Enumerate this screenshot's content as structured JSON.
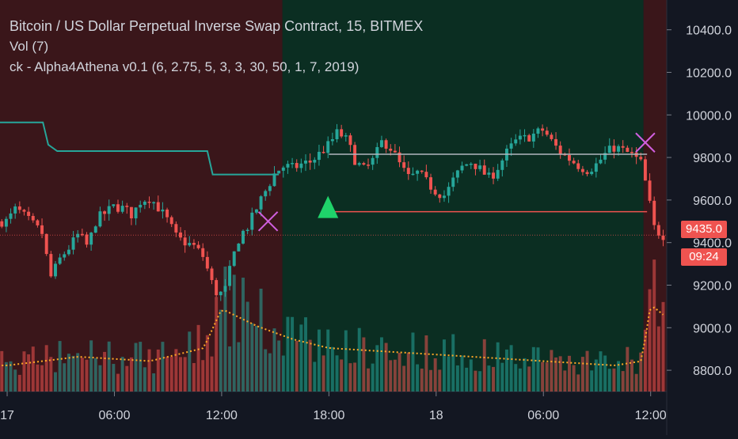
{
  "chart_data": {
    "type": "candlestick",
    "title": "Bitcoin / US Dollar Perpetual Inverse Swap Contract, 15, BITMEX",
    "indicators": [
      "Vol (7)",
      "ck - Alpha4Athena v0.1 (6, 2.75, 5, 3, 3, 30, 50, 1, 7, 2019)"
    ],
    "ylim": [
      8700,
      10540
    ],
    "yticks": [
      "10400.0",
      "10200.0",
      "10000.0",
      "9800.0",
      "9600.0",
      "9400.0",
      "9200.0",
      "9000.0",
      "8800.0"
    ],
    "yticks_values": [
      10400,
      10200,
      10000,
      9800,
      9600,
      9400,
      9200,
      9000,
      8800
    ],
    "xticks": [
      "17",
      "06:00",
      "12:00",
      "18:00",
      "18",
      "06:00",
      "12:00"
    ],
    "xticks_hours": [
      0,
      6,
      12,
      18,
      24,
      30,
      36
    ],
    "xlim_hours": [
      -0.4,
      36.9
    ],
    "current_price": "9435.0",
    "countdown": "09:24",
    "colors": {
      "background": "#131722",
      "bear_zone": "#3a161a",
      "bull_zone": "#0b2e22",
      "up": "#26a69a",
      "down": "#ef5350",
      "stop_line": "#26a69a",
      "vol_ma": "#ffa726",
      "entry_line": "#ef5350",
      "resistance_line": "#b2b5be",
      "signal_cross": "#d15fe0",
      "signal_triangle": "#1fd36a",
      "text": "#d1d4dc"
    },
    "zones": [
      {
        "type": "bear",
        "from_hour": -0.4,
        "to_hour": 15.4
      },
      {
        "type": "bull",
        "from_hour": 15.4,
        "to_hour": 35.6
      },
      {
        "type": "bear",
        "from_hour": 35.6,
        "to_hour": 36.9
      }
    ],
    "stop_line": [
      [
        -0.4,
        9965
      ],
      [
        2.0,
        9965
      ],
      [
        2.3,
        9860
      ],
      [
        2.8,
        9830
      ],
      [
        11.2,
        9830
      ],
      [
        11.5,
        9720
      ],
      [
        15.2,
        9720
      ]
    ],
    "resistance_line": {
      "from_hour": 18.0,
      "to_hour": 35.8,
      "price": 9815
    },
    "entry_line": {
      "from_hour": 18.0,
      "to_hour": 35.8,
      "price": 9545
    },
    "signals": [
      {
        "type": "cross",
        "hour": 14.6,
        "price": 9500
      },
      {
        "type": "triangle-up",
        "hour": 17.95,
        "price": 9560
      },
      {
        "type": "cross",
        "hour": 35.7,
        "price": 9870
      }
    ],
    "price_path": [
      [
        0,
        9500
      ],
      [
        0.5,
        9560
      ],
      [
        1,
        9520
      ],
      [
        1.5,
        9480
      ],
      [
        2,
        9440
      ],
      [
        2.4,
        9230
      ],
      [
        3,
        9330
      ],
      [
        3.5,
        9380
      ],
      [
        4,
        9440
      ],
      [
        4.5,
        9380
      ],
      [
        5,
        9510
      ],
      [
        5.5,
        9540
      ],
      [
        6,
        9570
      ],
      [
        6.5,
        9560
      ],
      [
        7,
        9530
      ],
      [
        7.5,
        9600
      ],
      [
        8,
        9610
      ],
      [
        8.5,
        9560
      ],
      [
        9,
        9500
      ],
      [
        9.5,
        9420
      ],
      [
        10,
        9400
      ],
      [
        10.5,
        9380
      ],
      [
        11,
        9330
      ],
      [
        11.4,
        9220
      ],
      [
        11.8,
        9150
      ],
      [
        12.2,
        9180
      ],
      [
        12.6,
        9320
      ],
      [
        13,
        9430
      ],
      [
        13.5,
        9480
      ],
      [
        14,
        9570
      ],
      [
        14.5,
        9650
      ],
      [
        15,
        9730
      ],
      [
        15.5,
        9760
      ],
      [
        16,
        9750
      ],
      [
        16.5,
        9770
      ],
      [
        17,
        9780
      ],
      [
        17.5,
        9820
      ],
      [
        18,
        9860
      ],
      [
        18.5,
        9920
      ],
      [
        19,
        9880
      ],
      [
        19.5,
        9780
      ],
      [
        20,
        9740
      ],
      [
        20.5,
        9790
      ],
      [
        21,
        9880
      ],
      [
        21.5,
        9840
      ],
      [
        22,
        9760
      ],
      [
        22.5,
        9700
      ],
      [
        23,
        9730
      ],
      [
        23.5,
        9680
      ],
      [
        24,
        9640
      ],
      [
        24.5,
        9620
      ],
      [
        25,
        9700
      ],
      [
        25.5,
        9760
      ],
      [
        26,
        9780
      ],
      [
        26.5,
        9740
      ],
      [
        27,
        9700
      ],
      [
        27.5,
        9760
      ],
      [
        28,
        9830
      ],
      [
        28.5,
        9880
      ],
      [
        29,
        9890
      ],
      [
        29.5,
        9910
      ],
      [
        30,
        9930
      ],
      [
        30.5,
        9870
      ],
      [
        31,
        9820
      ],
      [
        31.5,
        9790
      ],
      [
        32,
        9760
      ],
      [
        32.5,
        9740
      ],
      [
        33,
        9770
      ],
      [
        33.5,
        9820
      ],
      [
        34,
        9850
      ],
      [
        34.5,
        9830
      ],
      [
        35,
        9810
      ],
      [
        35.5,
        9770
      ],
      [
        35.9,
        9600
      ],
      [
        36.2,
        9470
      ],
      [
        36.6,
        9435
      ]
    ],
    "volume_path": [
      [
        0,
        0.3
      ],
      [
        4,
        0.4
      ],
      [
        8,
        0.35
      ],
      [
        11,
        0.5
      ],
      [
        12,
        0.95
      ],
      [
        14,
        0.75
      ],
      [
        16,
        0.6
      ],
      [
        18,
        0.5
      ],
      [
        22,
        0.45
      ],
      [
        26,
        0.4
      ],
      [
        30,
        0.35
      ],
      [
        34,
        0.3
      ],
      [
        35.5,
        0.35
      ],
      [
        36,
        1.0
      ],
      [
        36.9,
        0.85
      ]
    ]
  }
}
